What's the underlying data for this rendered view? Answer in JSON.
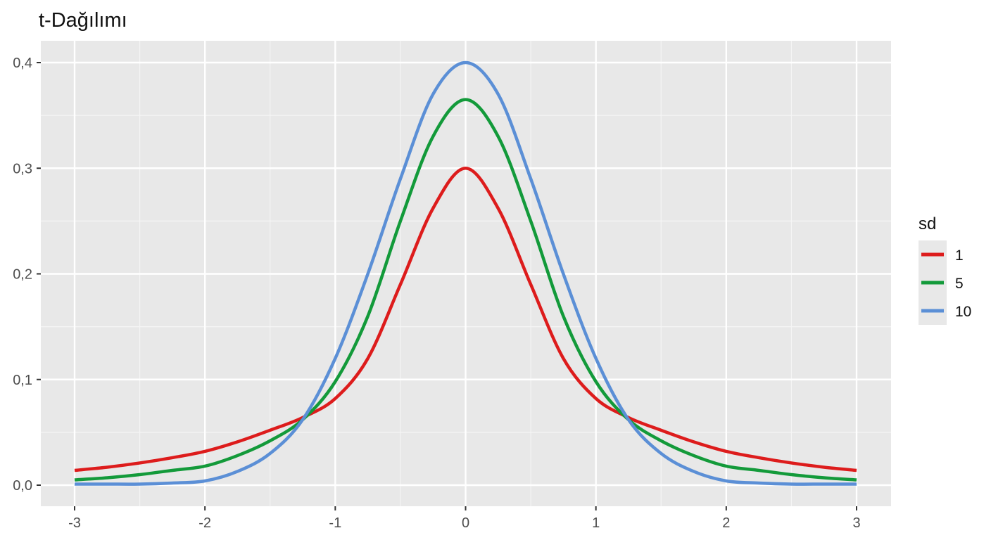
{
  "chart_data": {
    "type": "line",
    "title": "t-Dağılımı",
    "xlabel": "",
    "ylabel": "",
    "xlim": [
      -3,
      3
    ],
    "ylim": [
      0,
      0.4
    ],
    "x_ticks": [
      -3,
      -2,
      -1,
      0,
      1,
      2,
      3
    ],
    "x_tick_labels": [
      "-3",
      "-2",
      "-1",
      "0",
      "1",
      "2",
      "3"
    ],
    "y_ticks": [
      0,
      0.1,
      0.2,
      0.3,
      0.4
    ],
    "y_tick_labels": [
      "0,0",
      "0,1",
      "0,2",
      "0,3",
      "0,4"
    ],
    "grid": true,
    "background": "#e8e8e8",
    "grid_color": "#ffffff",
    "legend": {
      "title": "sd",
      "placement": "right"
    },
    "x": [
      -3,
      -2.75,
      -2.5,
      -2.25,
      -2,
      -1.75,
      -1.5,
      -1.25,
      -1,
      -0.75,
      -0.5,
      -0.25,
      0,
      0.25,
      0.5,
      0.75,
      1,
      1.25,
      1.5,
      1.75,
      2,
      2.25,
      2.5,
      2.75,
      3
    ],
    "series": [
      {
        "name": "1",
        "color": "#dd1c1c",
        "values": [
          0.014,
          0.017,
          0.021,
          0.026,
          0.032,
          0.041,
          0.052,
          0.064,
          0.082,
          0.12,
          0.19,
          0.262,
          0.3,
          0.262,
          0.19,
          0.12,
          0.082,
          0.064,
          0.052,
          0.041,
          0.032,
          0.026,
          0.021,
          0.017,
          0.014
        ]
      },
      {
        "name": "5",
        "color": "#139a3a",
        "values": [
          0.005,
          0.007,
          0.01,
          0.014,
          0.018,
          0.028,
          0.042,
          0.062,
          0.098,
          0.16,
          0.25,
          0.33,
          0.365,
          0.33,
          0.25,
          0.16,
          0.098,
          0.062,
          0.042,
          0.028,
          0.018,
          0.014,
          0.01,
          0.007,
          0.005
        ]
      },
      {
        "name": "10",
        "color": "#5b8fd6",
        "values": [
          0.001,
          0.001,
          0.001,
          0.002,
          0.004,
          0.013,
          0.03,
          0.062,
          0.12,
          0.2,
          0.29,
          0.37,
          0.4,
          0.37,
          0.29,
          0.2,
          0.12,
          0.062,
          0.03,
          0.013,
          0.004,
          0.002,
          0.001,
          0.001,
          0.001
        ]
      }
    ]
  }
}
